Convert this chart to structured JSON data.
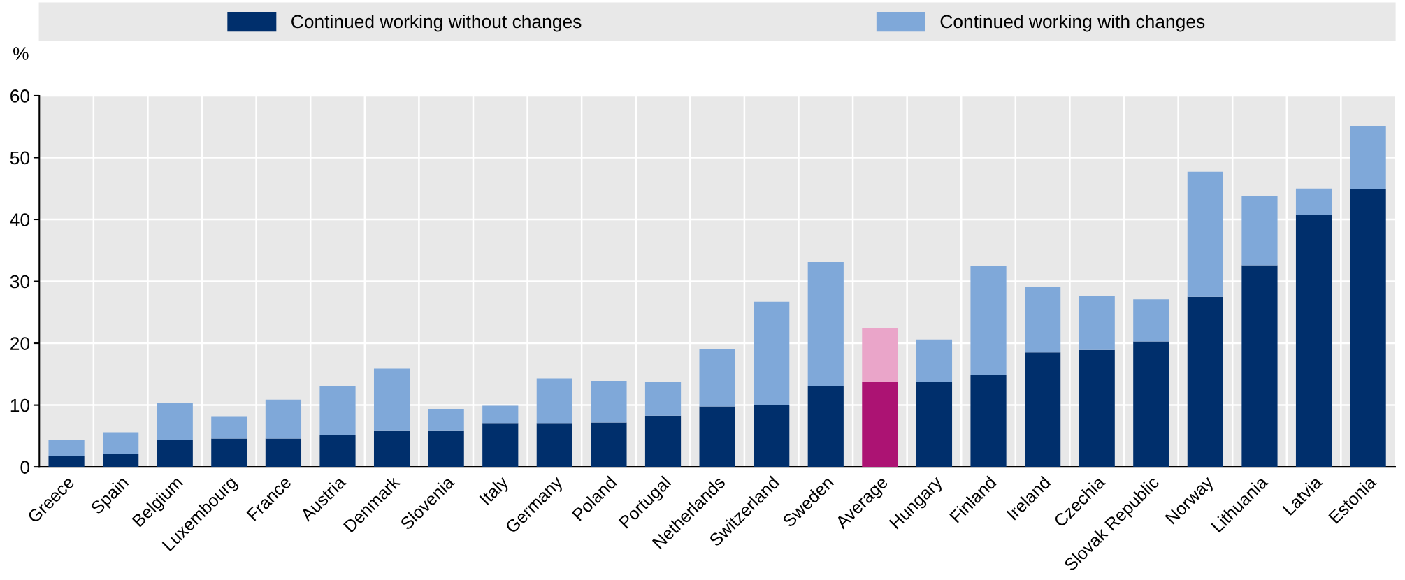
{
  "chart_data": {
    "type": "bar",
    "stacked": true,
    "ylabel": "%",
    "categories": [
      "Greece",
      "Spain",
      "Belgium",
      "Luxembourg",
      "France",
      "Austria",
      "Denmark",
      "Slovenia",
      "Italy",
      "Germany",
      "Poland",
      "Portugal",
      "Netherlands",
      "Switzerland",
      "Sweden",
      "Average",
      "Hungary",
      "Finland",
      "Ireland",
      "Czechia",
      "Slovak Republic",
      "Norway",
      "Lithuania",
      "Latvia",
      "Estonia"
    ],
    "series": [
      {
        "name": "Continued working without changes",
        "color": "#002f6c",
        "colors": [
          "#002f6c",
          "#002f6c",
          "#002f6c",
          "#002f6c",
          "#002f6c",
          "#002f6c",
          "#002f6c",
          "#002f6c",
          "#002f6c",
          "#002f6c",
          "#002f6c",
          "#002f6c",
          "#002f6c",
          "#002f6c",
          "#002f6c",
          "#ac1373",
          "#002f6c",
          "#002f6c",
          "#002f6c",
          "#002f6c",
          "#002f6c",
          "#002f6c",
          "#002f6c",
          "#002f6c",
          "#002f6c"
        ],
        "values": [
          1.8,
          2.1,
          4.4,
          4.6,
          4.6,
          5.1,
          5.8,
          5.8,
          7.0,
          7.0,
          7.2,
          8.3,
          9.8,
          10.0,
          13.1,
          13.7,
          13.8,
          14.8,
          18.5,
          18.9,
          20.3,
          27.5,
          32.6,
          40.8,
          44.9
        ]
      },
      {
        "name": "Continued working with changes",
        "color": "#7fa8d9",
        "colors": [
          "#7fa8d9",
          "#7fa8d9",
          "#7fa8d9",
          "#7fa8d9",
          "#7fa8d9",
          "#7fa8d9",
          "#7fa8d9",
          "#7fa8d9",
          "#7fa8d9",
          "#7fa8d9",
          "#7fa8d9",
          "#7fa8d9",
          "#7fa8d9",
          "#7fa8d9",
          "#7fa8d9",
          "#eaa5c9",
          "#7fa8d9",
          "#7fa8d9",
          "#7fa8d9",
          "#7fa8d9",
          "#7fa8d9",
          "#7fa8d9",
          "#7fa8d9",
          "#7fa8d9",
          "#7fa8d9"
        ],
        "values": [
          2.5,
          3.5,
          5.9,
          3.5,
          6.3,
          8.0,
          10.1,
          3.6,
          2.9,
          7.3,
          6.7,
          5.5,
          9.3,
          16.7,
          20.0,
          8.7,
          6.8,
          17.7,
          10.6,
          8.8,
          6.8,
          20.2,
          11.2,
          4.2,
          10.2
        ]
      }
    ],
    "ylim": [
      0,
      60
    ],
    "yticks": [
      0,
      10,
      20,
      30,
      40,
      50,
      60
    ],
    "grid": true,
    "legend": "top"
  }
}
